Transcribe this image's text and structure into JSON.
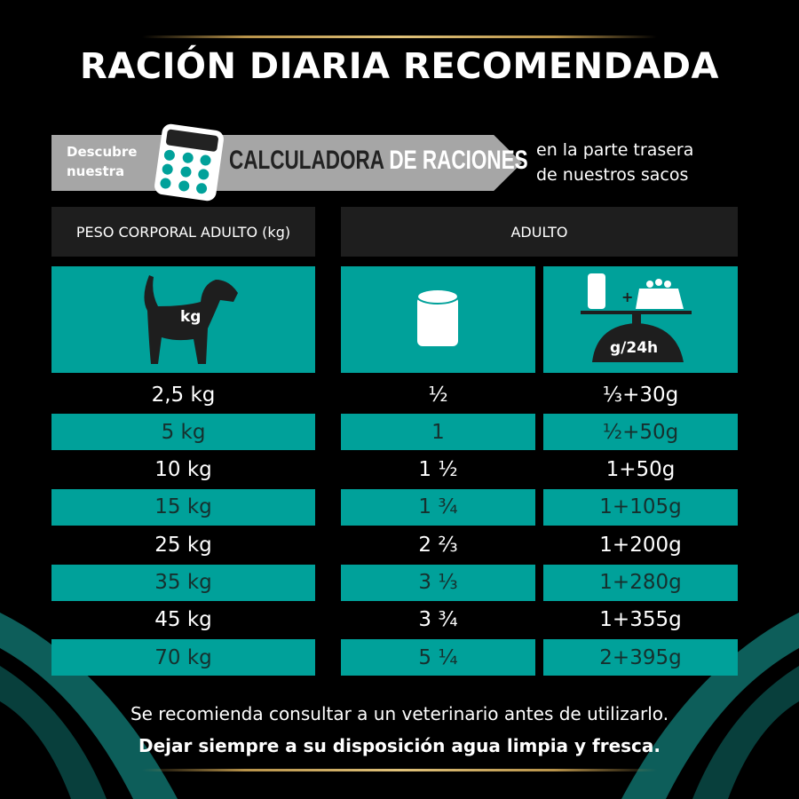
{
  "title": "RACIÓN DIARIA RECOMENDADA",
  "banner": {
    "discover": "Descubre",
    "discover2": "nuestra",
    "calc_a": "CALCULADORA",
    "calc_b": "DE RACIONES",
    "back1": "en la parte trasera",
    "back2": "de nuestros sacos"
  },
  "table": {
    "headers": [
      "PESO CORPORAL ADULTO (kg)",
      "ADULTO"
    ],
    "icons": {
      "dog_label": "kg",
      "scale_label": "g/24h",
      "plus": "+"
    },
    "rows": [
      {
        "weight": "2,5 kg",
        "can": "½",
        "mix": "⅓+30g"
      },
      {
        "weight": "5 kg",
        "can": "1",
        "mix": "½+50g"
      },
      {
        "weight": "10 kg",
        "can": "1 ½",
        "mix": "1+50g"
      },
      {
        "weight": "15 kg",
        "can": "1 ¾",
        "mix": "1+105g"
      },
      {
        "weight": "25 kg",
        "can": "2 ⅔",
        "mix": "1+200g"
      },
      {
        "weight": "35 kg",
        "can": "3 ⅓",
        "mix": "1+280g"
      },
      {
        "weight": "45 kg",
        "can": "3 ¾",
        "mix": "1+355g"
      },
      {
        "weight": "70 kg",
        "can": "5 ¼",
        "mix": "2+395g"
      }
    ]
  },
  "footer": {
    "line1": "Se recomienda consultar a un veterinario antes de utilizarlo.",
    "line2": "Dejar siempre a su disposición agua limpia y fresca."
  },
  "colors": {
    "teal": "#00a19a",
    "gold": "#c9a95c",
    "gray": "#a6a6a6"
  }
}
